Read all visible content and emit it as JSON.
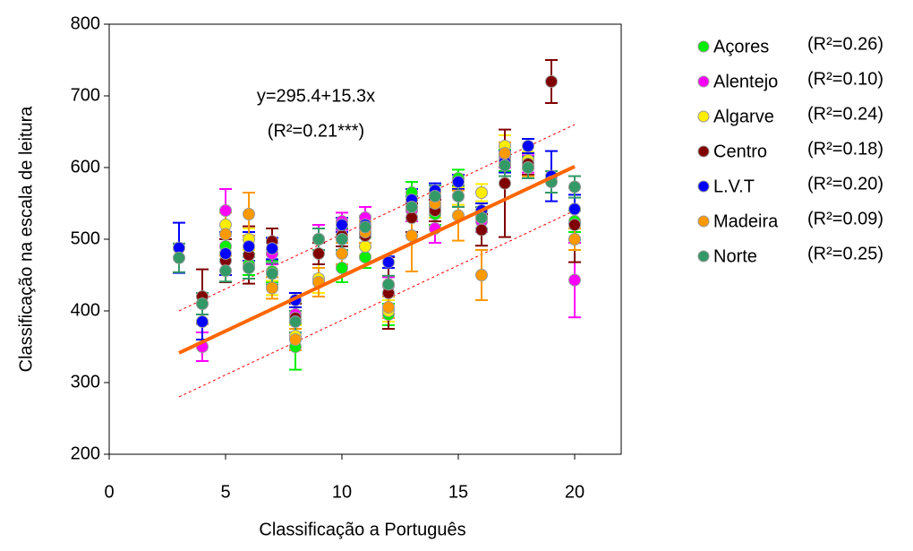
{
  "chart_data": {
    "type": "scatter",
    "x_label": "Classificação a Português",
    "y_label": "Classificação na escala de leitura",
    "annotation": [
      "y=295.4+15.3x",
      "(R²=0.21***)"
    ],
    "xlim": [
      0,
      22
    ],
    "xticks": [
      0,
      5,
      10,
      15,
      20
    ],
    "ylim": [
      200,
      800
    ],
    "yticks": [
      200,
      300,
      400,
      500,
      600,
      700,
      800
    ],
    "grid": false,
    "legend": "right",
    "x": [
      3,
      4,
      5,
      6,
      7,
      8,
      9,
      10,
      11,
      12,
      13,
      14,
      15,
      16,
      17,
      18,
      19,
      20
    ],
    "series": [
      {
        "name": "Açores",
        "r2_label": "(R²=0.26)",
        "color": "#00ee00",
        "values": [
          null,
          410,
          490,
          465,
          455,
          350,
          440,
          460,
          475,
          395,
          565,
          535,
          585,
          530,
          610,
          600,
          null,
          525
        ],
        "errors": [
          null,
          15,
          20,
          15,
          15,
          32,
          20,
          20,
          15,
          15,
          15,
          15,
          12,
          15,
          15,
          12,
          null,
          15
        ]
      },
      {
        "name": "Alentejo",
        "r2_label": "(R²=0.10)",
        "color": "#ff00ff",
        "values": [
          null,
          350,
          540,
          460,
          480,
          395,
          500,
          525,
          530,
          435,
          540,
          515,
          560,
          525,
          615,
          605,
          null,
          443
        ],
        "errors": [
          null,
          20,
          30,
          15,
          15,
          20,
          20,
          12,
          15,
          12,
          15,
          20,
          12,
          15,
          15,
          12,
          null,
          52
        ]
      },
      {
        "name": "Algarve",
        "r2_label": "(R²=0.24)",
        "color": "#ffee00",
        "values": [
          null,
          null,
          520,
          500,
          432,
          365,
          445,
          500,
          490,
          400,
          545,
          545,
          560,
          565,
          630,
          610,
          null,
          500
        ],
        "errors": [
          null,
          null,
          20,
          15,
          10,
          15,
          20,
          15,
          12,
          15,
          15,
          15,
          12,
          12,
          15,
          12,
          null,
          15
        ]
      },
      {
        "name": "Centro",
        "r2_label": "(R²=0.18)",
        "color": "#800000",
        "values": [
          null,
          420,
          470,
          478,
          497,
          390,
          480,
          505,
          505,
          425,
          530,
          540,
          560,
          513,
          578,
          605,
          720,
          520
        ],
        "errors": [
          null,
          38,
          30,
          40,
          18,
          20,
          15,
          15,
          15,
          50,
          20,
          15,
          15,
          22,
          75,
          15,
          30,
          52
        ]
      },
      {
        "name": "L.V.T",
        "r2_label": "(R²=0.20)",
        "color": "#0000ff",
        "values": [
          488,
          385,
          480,
          490,
          487,
          415,
          500,
          520,
          520,
          468,
          555,
          568,
          580,
          540,
          608,
          630,
          588,
          542
        ],
        "errors": [
          35,
          25,
          30,
          20,
          15,
          10,
          15,
          10,
          12,
          8,
          15,
          10,
          10,
          10,
          15,
          10,
          35,
          20
        ]
      },
      {
        "name": "Madeira",
        "r2_label": "(R²=0.09)",
        "color": "#ff9900",
        "values": [
          null,
          null,
          507,
          535,
          432,
          360,
          440,
          480,
          510,
          405,
          505,
          550,
          533,
          450,
          620,
          600,
          null,
          500
        ],
        "errors": [
          null,
          null,
          30,
          30,
          15,
          15,
          20,
          15,
          15,
          15,
          50,
          15,
          35,
          35,
          15,
          12,
          null,
          15
        ]
      },
      {
        "name": "Norte",
        "r2_label": "(R²=0.25)",
        "color": "#339966",
        "values": [
          474,
          410,
          456,
          460,
          452,
          385,
          500,
          500,
          517,
          437,
          545,
          560,
          560,
          530,
          603,
          600,
          580,
          573
        ],
        "errors": [
          20,
          15,
          15,
          15,
          15,
          15,
          15,
          15,
          15,
          12,
          15,
          15,
          15,
          15,
          15,
          15,
          15,
          15
        ]
      }
    ],
    "fit": {
      "color": "#ff6600",
      "x": [
        3,
        20
      ],
      "values": [
        341.3,
        601.4
      ]
    },
    "bands": {
      "color": "#ff0000",
      "x": [
        3,
        20
      ],
      "upper": [
        400,
        660
      ],
      "lower": [
        280,
        540
      ]
    }
  }
}
